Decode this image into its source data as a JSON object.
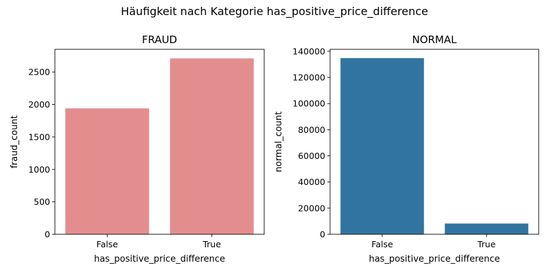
{
  "figure": {
    "suptitle": "Häufigkeit nach Kategorie has_positive_price_difference"
  },
  "chart_data": [
    {
      "type": "bar",
      "title": "FRAUD",
      "xlabel": "has_positive_price_difference",
      "ylabel": "fraud_count",
      "categories": [
        "False",
        "True"
      ],
      "values": [
        1940,
        2710
      ],
      "ylim": [
        0,
        2850
      ],
      "yticks": [
        0,
        500,
        1000,
        1500,
        2000,
        2500
      ],
      "color": "#e48d8e",
      "grid": false
    },
    {
      "type": "bar",
      "title": "NORMAL",
      "xlabel": "has_positive_price_difference",
      "ylabel": "normal_count",
      "categories": [
        "False",
        "True"
      ],
      "values": [
        134800,
        8200
      ],
      "ylim": [
        0,
        141500
      ],
      "yticks": [
        0,
        20000,
        40000,
        60000,
        80000,
        100000,
        120000,
        140000
      ],
      "color": "#3274a1",
      "grid": false
    }
  ]
}
